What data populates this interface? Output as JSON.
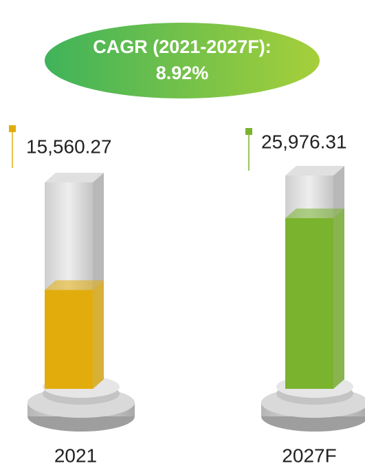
{
  "chart_data": {
    "type": "bar",
    "title": "CAGR (2021-2027F):",
    "subtitle": "8.92%",
    "categories": [
      "2021",
      "2027F"
    ],
    "values": [
      15560.27,
      25976.31
    ],
    "value_labels": [
      "15,560.27",
      "25,976.31"
    ],
    "colors": [
      "#e2ad0c",
      "#7ab32e"
    ]
  }
}
